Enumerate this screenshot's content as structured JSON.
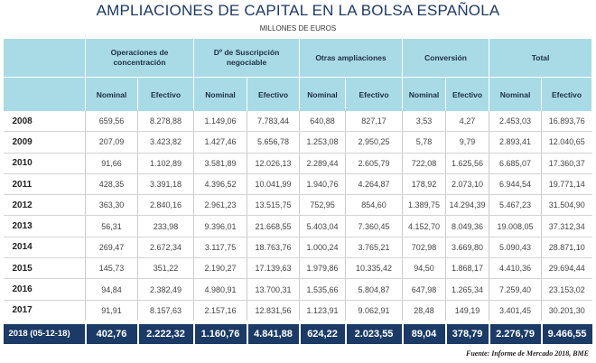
{
  "title": "AMPLIACIONES DE CAPITAL EN LA BOLSA ESPAÑOLA",
  "subtitle": "MILLONES DE EUROS",
  "groups": [
    "Operaciones de concentración",
    "Dº de Suscripción negociable",
    "Otras ampliaciones",
    "Conversión",
    "Total"
  ],
  "subheaders": [
    "Nominal",
    "Efectivo"
  ],
  "rows": [
    {
      "year": "2008",
      "values": [
        "659,56",
        "8.278,88",
        "1.149,06",
        "7.783,44",
        "640,88",
        "827,17",
        "3,53",
        "4,27",
        "2.453,03",
        "16.893,76"
      ]
    },
    {
      "year": "2009",
      "values": [
        "207,09",
        "3.423,82",
        "1.427,46",
        "5.656,78",
        "1.253,08",
        "2.950,25",
        "5,78",
        "9,79",
        "2.893,41",
        "12.040,65"
      ]
    },
    {
      "year": "2010",
      "values": [
        "91,66",
        "1.102,89",
        "3.581,89",
        "12.026,13",
        "2.289,44",
        "2.605,79",
        "722,08",
        "1.625,56",
        "6.685,07",
        "17.360,37"
      ]
    },
    {
      "year": "2011",
      "values": [
        "428,35",
        "3.391,18",
        "4.396,52",
        "10.041,99",
        "1.940,76",
        "4.264,87",
        "178,92",
        "2.073,10",
        "6.944,54",
        "19.771,14"
      ]
    },
    {
      "year": "2012",
      "values": [
        "363,30",
        "2.840,16",
        "2.961,23",
        "13.515,75",
        "752,95",
        "854,60",
        "1.389,75",
        "14.294,39",
        "5.467,23",
        "31.504,90"
      ]
    },
    {
      "year": "2013",
      "values": [
        "56,31",
        "233,98",
        "9.396,01",
        "21.668,55",
        "5.403,04",
        "7.360,45",
        "4.152,70",
        "8.049,36",
        "19.008,05",
        "37.312,34"
      ]
    },
    {
      "year": "2014",
      "values": [
        "269,47",
        "2.672,34",
        "3.117,75",
        "18.763,76",
        "1.000,24",
        "3.765,21",
        "702,98",
        "3.669,80",
        "5.090,43",
        "28.871,10"
      ]
    },
    {
      "year": "2015",
      "values": [
        "145,73",
        "351,22",
        "2.190,27",
        "17.139,63",
        "1.979,86",
        "10.335,42",
        "94,50",
        "1.868,17",
        "4.410,36",
        "29.694,44"
      ]
    },
    {
      "year": "2016",
      "values": [
        "94,84",
        "2.382,49",
        "4.980,91",
        "13.700,31",
        "1.535,66",
        "5.804,87",
        "647,98",
        "1.265,34",
        "7.259,40",
        "23.153,02"
      ]
    },
    {
      "year": "2017",
      "values": [
        "91,91",
        "8.157,63",
        "2.157,16",
        "12.831,56",
        "1.123,91",
        "9.062,91",
        "28,48",
        "149,19",
        "3.401,45",
        "30.201,30"
      ]
    }
  ],
  "highlight": {
    "year": "2018 (05-12-18)",
    "values": [
      "402,76",
      "2.222,32",
      "1.160,76",
      "4.841,88",
      "624,22",
      "2.023,55",
      "89,04",
      "378,79",
      "2.276,79",
      "9.466,55"
    ]
  },
  "source": "Fuente: Informe de Mercado 2018, BME",
  "colors": {
    "header_bg": "#a9dbe6",
    "highlight_bg": "#1b3a66",
    "title": "#1f3a63"
  }
}
